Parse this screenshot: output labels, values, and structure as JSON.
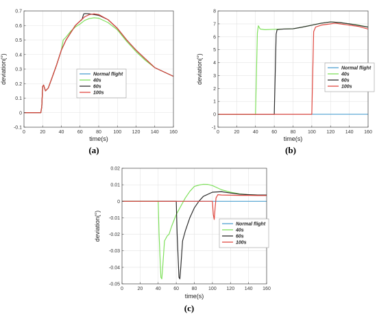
{
  "colors": {
    "normal": "#4a9fd0",
    "s40": "#7ee05a",
    "s60": "#2b2b2b",
    "s100": "#e0463e"
  },
  "chart_data": [
    {
      "type": "line",
      "panel_label": "(a)",
      "xlabel": "time(s)",
      "ylabel": "deviation(°)",
      "xlim": [
        0,
        160
      ],
      "ylim": [
        -0.1,
        0.7
      ],
      "xticks": [
        0,
        20,
        40,
        60,
        80,
        100,
        120,
        140,
        160
      ],
      "yticks": [
        -0.1,
        0,
        0.1,
        0.2,
        0.3,
        0.4,
        0.5,
        0.6,
        0.7
      ],
      "grid": true,
      "legend_position": "center-right",
      "series": [
        {
          "name": "Normal flight",
          "color_key": "normal",
          "points": [
            [
              0,
              0
            ],
            [
              18,
              0
            ],
            [
              19,
              0.04
            ],
            [
              20,
              0.18
            ],
            [
              21,
              0.19
            ],
            [
              23,
              0.15
            ],
            [
              26,
              0.17
            ],
            [
              30,
              0.24
            ],
            [
              35,
              0.33
            ],
            [
              40,
              0.43
            ],
            [
              45,
              0.5
            ],
            [
              50,
              0.55
            ],
            [
              55,
              0.6
            ],
            [
              60,
              0.63
            ],
            [
              65,
              0.66
            ],
            [
              70,
              0.675
            ],
            [
              75,
              0.68
            ],
            [
              80,
              0.675
            ],
            [
              90,
              0.64
            ],
            [
              100,
              0.58
            ],
            [
              110,
              0.5
            ],
            [
              120,
              0.43
            ],
            [
              130,
              0.37
            ],
            [
              140,
              0.31
            ],
            [
              150,
              0.28
            ],
            [
              160,
              0.25
            ]
          ]
        },
        {
          "name": "40s",
          "color_key": "s40",
          "points": [
            [
              0,
              0
            ],
            [
              18,
              0
            ],
            [
              19,
              0.04
            ],
            [
              20,
              0.18
            ],
            [
              21,
              0.19
            ],
            [
              23,
              0.15
            ],
            [
              26,
              0.17
            ],
            [
              30,
              0.24
            ],
            [
              35,
              0.33
            ],
            [
              40,
              0.43
            ],
            [
              42,
              0.5
            ],
            [
              45,
              0.52
            ],
            [
              50,
              0.56
            ],
            [
              55,
              0.59
            ],
            [
              60,
              0.61
            ],
            [
              65,
              0.635
            ],
            [
              70,
              0.648
            ],
            [
              75,
              0.653
            ],
            [
              80,
              0.65
            ],
            [
              90,
              0.62
            ],
            [
              100,
              0.57
            ],
            [
              110,
              0.49
            ],
            [
              120,
              0.42
            ],
            [
              130,
              0.36
            ],
            [
              140,
              0.31
            ],
            [
              150,
              0.28
            ],
            [
              160,
              0.25
            ]
          ]
        },
        {
          "name": "60s",
          "color_key": "s60",
          "points": [
            [
              0,
              0
            ],
            [
              18,
              0
            ],
            [
              19,
              0.04
            ],
            [
              20,
              0.18
            ],
            [
              21,
              0.19
            ],
            [
              23,
              0.15
            ],
            [
              26,
              0.17
            ],
            [
              30,
              0.24
            ],
            [
              35,
              0.33
            ],
            [
              40,
              0.43
            ],
            [
              45,
              0.5
            ],
            [
              50,
              0.55
            ],
            [
              55,
              0.6
            ],
            [
              60,
              0.63
            ],
            [
              62,
              0.64
            ],
            [
              64,
              0.68
            ],
            [
              66,
              0.682
            ],
            [
              70,
              0.68
            ],
            [
              75,
              0.675
            ],
            [
              80,
              0.67
            ],
            [
              90,
              0.64
            ],
            [
              100,
              0.58
            ],
            [
              110,
              0.5
            ],
            [
              120,
              0.43
            ],
            [
              130,
              0.37
            ],
            [
              140,
              0.31
            ],
            [
              150,
              0.28
            ],
            [
              160,
              0.25
            ]
          ]
        },
        {
          "name": "100s",
          "color_key": "s100",
          "points": [
            [
              0,
              0
            ],
            [
              18,
              0
            ],
            [
              19,
              0.04
            ],
            [
              20,
              0.18
            ],
            [
              21,
              0.19
            ],
            [
              23,
              0.15
            ],
            [
              26,
              0.17
            ],
            [
              30,
              0.24
            ],
            [
              35,
              0.33
            ],
            [
              40,
              0.43
            ],
            [
              45,
              0.5
            ],
            [
              50,
              0.55
            ],
            [
              55,
              0.6
            ],
            [
              60,
              0.63
            ],
            [
              65,
              0.66
            ],
            [
              70,
              0.675
            ],
            [
              75,
              0.68
            ],
            [
              80,
              0.675
            ],
            [
              90,
              0.64
            ],
            [
              100,
              0.58
            ],
            [
              110,
              0.5
            ],
            [
              120,
              0.43
            ],
            [
              130,
              0.37
            ],
            [
              140,
              0.31
            ],
            [
              150,
              0.28
            ],
            [
              160,
              0.25
            ]
          ]
        }
      ]
    },
    {
      "type": "line",
      "panel_label": "(b)",
      "xlabel": "time(s)",
      "ylabel": "deviation(°)",
      "xlim": [
        0,
        160
      ],
      "ylim": [
        -1,
        8
      ],
      "xticks": [
        0,
        20,
        40,
        60,
        80,
        100,
        120,
        140,
        160
      ],
      "yticks": [
        -1,
        0,
        1,
        2,
        3,
        4,
        5,
        6,
        7,
        8
      ],
      "grid": true,
      "legend_position": "center-right",
      "series": [
        {
          "name": "Normal flight",
          "color_key": "normal",
          "points": [
            [
              0,
              0
            ],
            [
              160,
              0
            ]
          ]
        },
        {
          "name": "40s",
          "color_key": "s40",
          "points": [
            [
              0,
              0
            ],
            [
              40,
              0
            ],
            [
              42,
              6.3
            ],
            [
              43,
              6.85
            ],
            [
              45,
              6.6
            ],
            [
              50,
              6.55
            ],
            [
              60,
              6.58
            ],
            [
              70,
              6.6
            ],
            [
              80,
              6.62
            ],
            [
              90,
              6.75
            ],
            [
              100,
              6.9
            ],
            [
              110,
              7.05
            ],
            [
              120,
              7.15
            ],
            [
              130,
              7.1
            ],
            [
              140,
              7.0
            ],
            [
              150,
              6.9
            ],
            [
              160,
              6.75
            ]
          ]
        },
        {
          "name": "60s",
          "color_key": "s60",
          "points": [
            [
              0,
              0
            ],
            [
              60,
              0
            ],
            [
              62,
              6.2
            ],
            [
              63,
              6.55
            ],
            [
              66,
              6.58
            ],
            [
              70,
              6.6
            ],
            [
              80,
              6.62
            ],
            [
              90,
              6.75
            ],
            [
              100,
              6.9
            ],
            [
              110,
              7.05
            ],
            [
              120,
              7.15
            ],
            [
              130,
              7.1
            ],
            [
              140,
              7.0
            ],
            [
              150,
              6.88
            ],
            [
              160,
              6.75
            ]
          ]
        },
        {
          "name": "100s",
          "color_key": "s100",
          "points": [
            [
              0,
              0
            ],
            [
              100,
              0
            ],
            [
              102,
              6.4
            ],
            [
              104,
              6.75
            ],
            [
              110,
              6.9
            ],
            [
              120,
              7.0
            ],
            [
              125,
              7.05
            ],
            [
              130,
              7.0
            ],
            [
              140,
              6.9
            ],
            [
              150,
              6.8
            ],
            [
              160,
              6.6
            ]
          ]
        }
      ]
    },
    {
      "type": "line",
      "panel_label": "(c)",
      "xlabel": "time(s)",
      "ylabel": "deviation(°)",
      "xlim": [
        0,
        160
      ],
      "ylim": [
        -0.05,
        0.02
      ],
      "xticks": [
        0,
        20,
        40,
        60,
        80,
        100,
        120,
        140,
        160
      ],
      "yticks": [
        -0.05,
        -0.04,
        -0.03,
        -0.02,
        -0.01,
        0,
        0.01,
        0.02
      ],
      "grid": true,
      "legend_position": "center-right",
      "series": [
        {
          "name": "Normal flight",
          "color_key": "normal",
          "points": [
            [
              0,
              0
            ],
            [
              160,
              0
            ]
          ]
        },
        {
          "name": "40s",
          "color_key": "s40",
          "points": [
            [
              0,
              0
            ],
            [
              40,
              0
            ],
            [
              41,
              -0.02
            ],
            [
              43,
              -0.046
            ],
            [
              44,
              -0.047
            ],
            [
              45,
              -0.04
            ],
            [
              47,
              -0.024
            ],
            [
              50,
              -0.021
            ],
            [
              52,
              -0.02
            ],
            [
              55,
              -0.015
            ],
            [
              60,
              -0.008
            ],
            [
              65,
              -0.003
            ],
            [
              70,
              0.002
            ],
            [
              75,
              0.006
            ],
            [
              80,
              0.009
            ],
            [
              85,
              0.0098
            ],
            [
              90,
              0.0103
            ],
            [
              95,
              0.0102
            ],
            [
              100,
              0.0095
            ],
            [
              110,
              0.007
            ],
            [
              120,
              0.0055
            ],
            [
              130,
              0.0045
            ],
            [
              140,
              0.004
            ],
            [
              150,
              0.0038
            ],
            [
              160,
              0.0037
            ]
          ]
        },
        {
          "name": "60s",
          "color_key": "s60",
          "points": [
            [
              0,
              0
            ],
            [
              60,
              0
            ],
            [
              61,
              -0.02
            ],
            [
              63,
              -0.046
            ],
            [
              64,
              -0.047
            ],
            [
              65,
              -0.04
            ],
            [
              67,
              -0.024
            ],
            [
              70,
              -0.018
            ],
            [
              75,
              -0.01
            ],
            [
              80,
              -0.004
            ],
            [
              85,
              0.0
            ],
            [
              90,
              0.003
            ],
            [
              100,
              0.0055
            ],
            [
              110,
              0.0058
            ],
            [
              120,
              0.005
            ],
            [
              130,
              0.0043
            ],
            [
              140,
              0.004
            ],
            [
              150,
              0.0038
            ],
            [
              160,
              0.0038
            ]
          ]
        },
        {
          "name": "100s",
          "color_key": "s100",
          "points": [
            [
              0,
              0
            ],
            [
              100,
              0
            ],
            [
              101,
              -0.008
            ],
            [
              102,
              -0.011
            ],
            [
              103,
              -0.004
            ],
            [
              104,
              0.002
            ],
            [
              106,
              0.004
            ],
            [
              110,
              0.0038
            ],
            [
              120,
              0.0037
            ],
            [
              130,
              0.0036
            ],
            [
              140,
              0.0036
            ],
            [
              150,
              0.0035
            ],
            [
              160,
              0.0035
            ]
          ]
        }
      ]
    }
  ]
}
